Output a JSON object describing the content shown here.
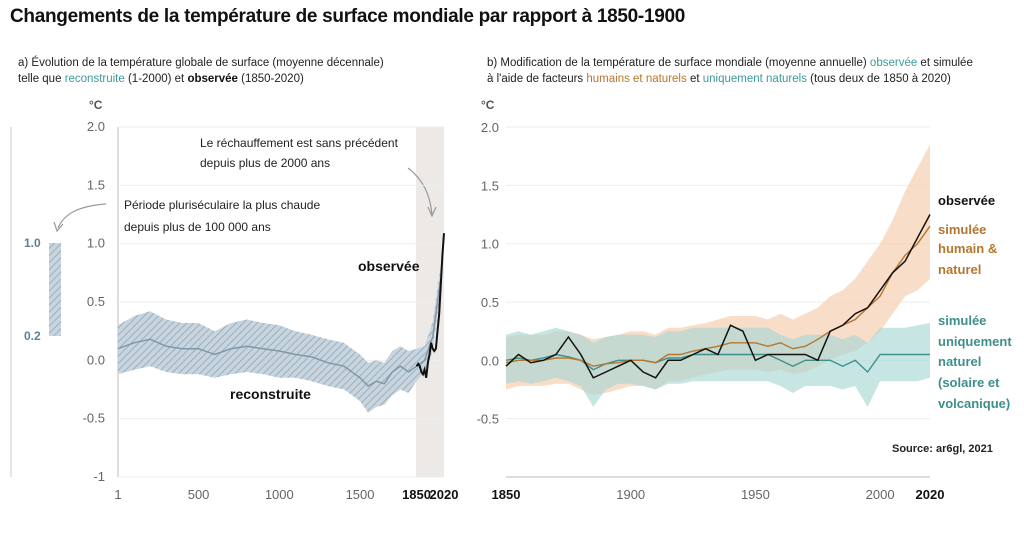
{
  "title": "Changements de la température de surface mondiale par rapport à 1850-1900",
  "panel_a": {
    "subtitle_line1": "a) Évolution de la température globale de surface (moyenne décennale)",
    "subtitle_line2_pre": "telle que ",
    "subtitle_reconstructed": "reconstruite",
    "subtitle_mid": " (1-2000) et ",
    "subtitle_observed": "observée",
    "subtitle_end": " (1850-2020)",
    "unit": "°C",
    "annotation_1_line1": "Le réchauffement est sans précédent",
    "annotation_1_line2": "depuis plus de 2000 ans",
    "annotation_2_line1": "Période pluriséculaire la plus chaude",
    "annotation_2_line2": "depuis plus de 100 000 ans",
    "label_observed": "observée",
    "label_reconstructed": "reconstruite",
    "side_bar_top": "1.0",
    "side_bar_bottom": "0.2"
  },
  "panel_b": {
    "subtitle_line1_pre": "b) Modification de la température de surface mondiale (moyenne annuelle) ",
    "subtitle_observed": "observée",
    "subtitle_line1_post": " et simulée",
    "subtitle_line2_pre": "à l'aide de facteurs ",
    "subtitle_human": "humains et naturels",
    "subtitle_mid": " et ",
    "subtitle_natural": "uniquement naturels",
    "subtitle_end": " (tous deux de 1850 à 2020)",
    "unit": "°C",
    "legend_observed": "observée",
    "legend_human_1": "simulée",
    "legend_human_2": "humain &",
    "legend_human_3": "naturel",
    "legend_natural_1": "simulée",
    "legend_natural_2": "uniquement",
    "legend_natural_3": "naturel",
    "legend_natural_4": "(solaire et",
    "legend_natural_5": "volcanique)",
    "source": "Source:  ar6gl,  2021"
  },
  "colors": {
    "reconstructed": "#7f97a8",
    "reconstructed_band": "#b9c8d3",
    "observed": "#111111",
    "human": "#b5772e",
    "human_band": "#f6d2b5",
    "natural": "#3d8f8c",
    "natural_band": "#a9d7d4",
    "shade": "#ece9e6"
  },
  "chart_data": [
    {
      "type": "line",
      "title": "a) Évolution de la température globale de surface (moyenne décennale) telle que reconstruite (1-2000) et observée (1850-2020)",
      "ylabel": "°C",
      "ylim": [
        -1,
        2
      ],
      "xlim": [
        1,
        2020
      ],
      "y_ticks": [
        "2.0",
        "1.5",
        "1.0",
        "0.5",
        "0.0",
        "-0.5",
        "-1"
      ],
      "x_ticks": [
        "1",
        "500",
        "1000",
        "1500",
        "1850",
        "2020"
      ],
      "y_tick_values": [
        2.0,
        1.5,
        1.0,
        0.5,
        0.0,
        -0.5,
        -1.0
      ],
      "x_tick_values": [
        1,
        500,
        1000,
        1500,
        1850,
        2020
      ],
      "shaded_period": [
        1850,
        2020
      ],
      "grid": true,
      "series": [
        {
          "name": "reconstruite",
          "x": [
            1,
            100,
            200,
            300,
            400,
            500,
            600,
            700,
            800,
            900,
            1000,
            1100,
            1200,
            1300,
            1400,
            1450,
            1500,
            1550,
            1600,
            1650,
            1700,
            1750,
            1800,
            1850,
            1900,
            1950,
            2000
          ],
          "values": [
            0.1,
            0.15,
            0.18,
            0.12,
            0.1,
            0.1,
            0.05,
            0.1,
            0.12,
            0.1,
            0.08,
            0.05,
            0.03,
            -0.02,
            -0.05,
            -0.1,
            -0.15,
            -0.22,
            -0.18,
            -0.2,
            -0.1,
            -0.05,
            -0.1,
            -0.05,
            0.0,
            0.2,
            0.7
          ],
          "lower": [
            -0.12,
            -0.08,
            -0.05,
            -0.1,
            -0.12,
            -0.12,
            -0.15,
            -0.12,
            -0.1,
            -0.12,
            -0.15,
            -0.15,
            -0.18,
            -0.22,
            -0.25,
            -0.3,
            -0.35,
            -0.45,
            -0.4,
            -0.38,
            -0.3,
            -0.25,
            -0.28,
            -0.18,
            -0.1,
            0.08,
            0.6
          ],
          "upper": [
            0.3,
            0.38,
            0.42,
            0.35,
            0.32,
            0.32,
            0.25,
            0.32,
            0.35,
            0.32,
            0.3,
            0.25,
            0.22,
            0.18,
            0.15,
            0.1,
            0.05,
            -0.02,
            0.0,
            -0.02,
            0.08,
            0.12,
            0.08,
            0.1,
            0.12,
            0.33,
            0.82
          ]
        },
        {
          "name": "observée",
          "x": [
            1850,
            1860,
            1870,
            1880,
            1890,
            1900,
            1910,
            1920,
            1930,
            1940,
            1950,
            1960,
            1970,
            1980,
            1990,
            2000,
            2010,
            2020
          ],
          "values": [
            -0.05,
            -0.03,
            -0.05,
            -0.1,
            -0.12,
            -0.08,
            -0.15,
            -0.02,
            0.05,
            0.15,
            0.1,
            0.08,
            0.1,
            0.25,
            0.4,
            0.65,
            0.9,
            1.09
          ]
        }
      ],
      "side_bar": {
        "low": 0.2,
        "high": 1.0
      }
    },
    {
      "type": "line",
      "title": "b) Modification de la température de surface mondiale (moyenne annuelle) observée et simulée à l'aide de facteurs humains et naturels et uniquement naturels (tous deux de 1850 à 2020)",
      "ylabel": "°C",
      "ylim": [
        -1,
        2
      ],
      "xlim": [
        1850,
        2020
      ],
      "y_ticks": [
        "2.0",
        "1.5",
        "1.0",
        "0.5",
        "0.0",
        "-0.5"
      ],
      "x_ticks": [
        "1850",
        "1900",
        "1950",
        "2000",
        "2020"
      ],
      "y_tick_values": [
        2.0,
        1.5,
        1.0,
        0.5,
        0.0,
        -0.5
      ],
      "x_tick_values": [
        1850,
        1900,
        1950,
        2000,
        2020
      ],
      "grid": true,
      "x": [
        1850,
        1855,
        1860,
        1865,
        1870,
        1875,
        1880,
        1885,
        1890,
        1895,
        1900,
        1905,
        1910,
        1915,
        1920,
        1925,
        1930,
        1935,
        1940,
        1945,
        1950,
        1955,
        1960,
        1965,
        1970,
        1975,
        1980,
        1985,
        1990,
        1995,
        2000,
        2005,
        2010,
        2015,
        2020
      ],
      "series": [
        {
          "name": "observée",
          "values": [
            -0.05,
            0.05,
            -0.02,
            0.0,
            0.05,
            0.2,
            0.05,
            -0.15,
            -0.1,
            -0.05,
            0.0,
            -0.1,
            -0.15,
            0.0,
            0.0,
            0.05,
            0.1,
            0.05,
            0.3,
            0.25,
            0.0,
            0.05,
            0.05,
            0.05,
            0.05,
            0.0,
            0.25,
            0.3,
            0.4,
            0.45,
            0.6,
            0.75,
            0.85,
            1.05,
            1.25
          ]
        },
        {
          "name": "simulée humain & naturel",
          "values": [
            -0.02,
            0.0,
            0.0,
            0.0,
            0.02,
            0.02,
            0.0,
            -0.05,
            -0.03,
            -0.02,
            0.0,
            0.0,
            -0.02,
            0.05,
            0.05,
            0.08,
            0.1,
            0.12,
            0.15,
            0.15,
            0.15,
            0.12,
            0.15,
            0.1,
            0.12,
            0.18,
            0.25,
            0.3,
            0.35,
            0.45,
            0.55,
            0.75,
            0.9,
            1.0,
            1.15
          ],
          "lower": [
            -0.25,
            -0.22,
            -0.22,
            -0.22,
            -0.2,
            -0.2,
            -0.25,
            -0.3,
            -0.28,
            -0.25,
            -0.22,
            -0.22,
            -0.25,
            -0.18,
            -0.18,
            -0.15,
            -0.12,
            -0.1,
            -0.08,
            -0.08,
            -0.08,
            -0.1,
            -0.08,
            -0.12,
            -0.1,
            -0.05,
            0.0,
            0.05,
            0.08,
            0.15,
            0.25,
            0.4,
            0.55,
            0.6,
            0.7
          ],
          "upper": [
            0.2,
            0.22,
            0.22,
            0.22,
            0.25,
            0.25,
            0.22,
            0.18,
            0.2,
            0.22,
            0.25,
            0.25,
            0.22,
            0.28,
            0.28,
            0.3,
            0.32,
            0.35,
            0.38,
            0.38,
            0.38,
            0.35,
            0.4,
            0.35,
            0.4,
            0.45,
            0.55,
            0.6,
            0.7,
            0.85,
            1.0,
            1.2,
            1.45,
            1.65,
            1.85
          ]
        },
        {
          "name": "simulée uniquement naturel (solaire et volcanique)",
          "values": [
            0.0,
            0.02,
            0.0,
            0.02,
            0.05,
            0.03,
            0.0,
            -0.08,
            -0.03,
            0.0,
            0.0,
            0.0,
            -0.02,
            0.02,
            0.02,
            0.05,
            0.05,
            0.05,
            0.05,
            0.05,
            0.05,
            0.05,
            0.0,
            -0.05,
            0.0,
            0.0,
            0.0,
            -0.05,
            0.0,
            -0.1,
            0.05,
            0.05,
            0.05,
            0.05,
            0.05
          ],
          "lower": [
            -0.2,
            -0.18,
            -0.2,
            -0.18,
            -0.15,
            -0.18,
            -0.22,
            -0.4,
            -0.25,
            -0.2,
            -0.2,
            -0.22,
            -0.25,
            -0.2,
            -0.2,
            -0.18,
            -0.18,
            -0.18,
            -0.18,
            -0.18,
            -0.18,
            -0.18,
            -0.22,
            -0.28,
            -0.22,
            -0.22,
            -0.22,
            -0.25,
            -0.22,
            -0.4,
            -0.18,
            -0.18,
            -0.18,
            -0.18,
            -0.15
          ],
          "upper": [
            0.22,
            0.25,
            0.22,
            0.25,
            0.28,
            0.25,
            0.22,
            0.15,
            0.2,
            0.22,
            0.22,
            0.22,
            0.2,
            0.25,
            0.25,
            0.28,
            0.28,
            0.28,
            0.28,
            0.28,
            0.28,
            0.28,
            0.22,
            0.18,
            0.22,
            0.22,
            0.22,
            0.18,
            0.22,
            0.15,
            0.28,
            0.28,
            0.28,
            0.3,
            0.32
          ]
        }
      ]
    }
  ]
}
